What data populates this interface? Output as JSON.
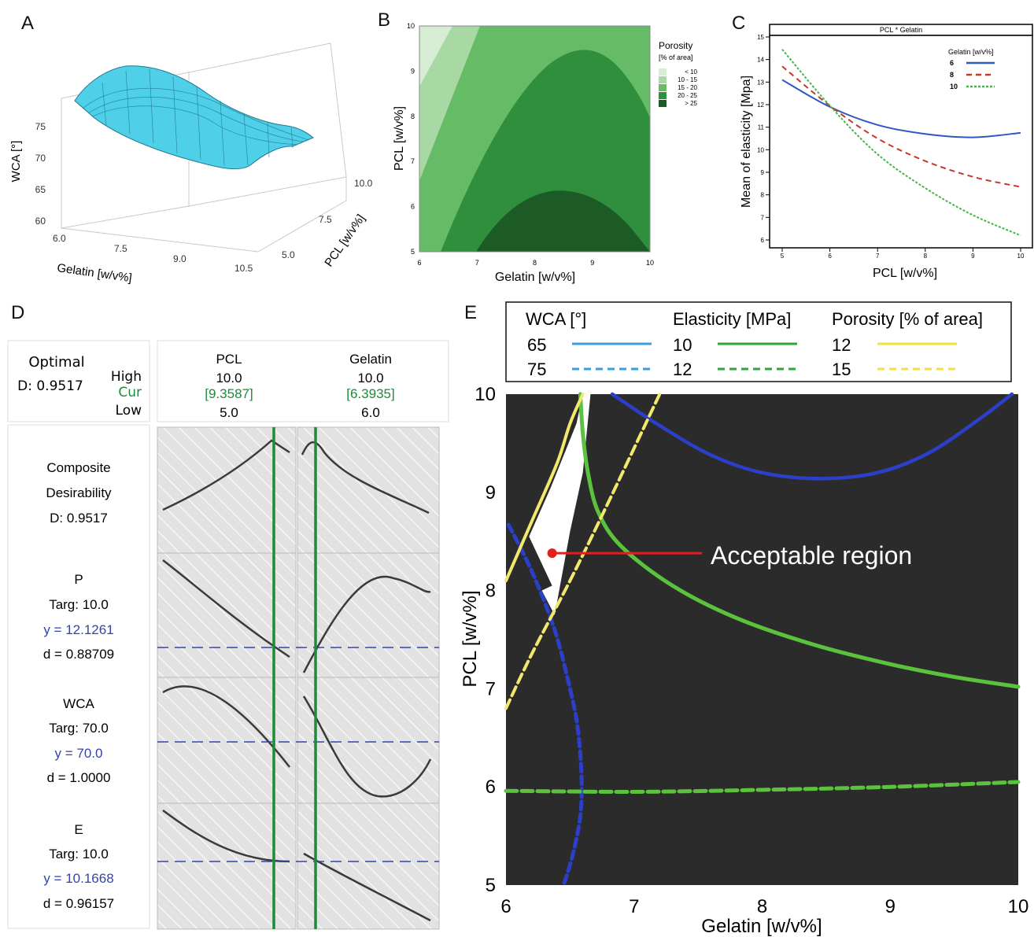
{
  "panels": {
    "a": "A",
    "b": "B",
    "c": "C",
    "d": "D",
    "e": "E"
  },
  "colors": {
    "surface": "#4fd0e8",
    "green_dark": "#2f7d32",
    "blue_line": "#2c57c5",
    "red_line": "#c0392b",
    "green_line": "#43b64a",
    "optimizer_green": "#1f8a3a",
    "optimizer_blue": "#3344aa",
    "e_bg": "#2b2b2b",
    "e_blue": "#2c3fc8",
    "e_green": "#5bc23d",
    "e_yellow": "#f2e86d",
    "e_red": "#e02020"
  },
  "panel_a": {
    "xlabel": "Gelatin [w/v%]",
    "ylabel": "PCL [w/v%]",
    "zlabel": "WCA [°]",
    "x_ticks": [
      "6.0",
      "7.5",
      "9.0",
      "10.5"
    ],
    "y_ticks": [
      "5.0",
      "7.5",
      "10.0"
    ],
    "z_ticks": [
      "60",
      "65",
      "70",
      "75"
    ]
  },
  "chart_data": [
    {
      "type": "heatmap",
      "title": "",
      "xlabel": "Gelatin [w/v%]",
      "ylabel": "PCL [w/v%]",
      "xlim": [
        6,
        10
      ],
      "ylim": [
        5,
        10
      ],
      "x_ticks": [
        "6",
        "7",
        "8",
        "9",
        "10"
      ],
      "y_ticks": [
        "5",
        "6",
        "7",
        "8",
        "9",
        "10"
      ],
      "legend_title": "Porosity",
      "legend_subtitle": "[% of area]",
      "legend": [
        "< 10",
        "10 - 15",
        "15 - 20",
        "20 - 25",
        "> 25"
      ],
      "legend_colors": [
        "#d6edd3",
        "#a8d8a3",
        "#66bb66",
        "#2f8f3c",
        "#1c5a26"
      ]
    },
    {
      "type": "line",
      "title": "PCL * Gelatin",
      "xlabel": "PCL [w/v%]",
      "ylabel": "Mean of elasticity [Mpa]",
      "xlim": [
        5,
        10
      ],
      "ylim": [
        6,
        15
      ],
      "x_ticks": [
        "5",
        "6",
        "7",
        "8",
        "9",
        "10"
      ],
      "y_ticks": [
        "6",
        "7",
        "8",
        "9",
        "10",
        "11",
        "12",
        "13",
        "14",
        "15"
      ],
      "legend_title": "Gelatin [w/v%]",
      "legend_placement": "top-right",
      "x": [
        5,
        6,
        7,
        8,
        9,
        10
      ],
      "series": [
        {
          "name": "6",
          "values": [
            13.1,
            11.9,
            11.1,
            10.7,
            10.55,
            10.75
          ]
        },
        {
          "name": "8",
          "values": [
            13.7,
            11.95,
            10.5,
            9.5,
            8.8,
            8.35
          ]
        },
        {
          "name": "10",
          "values": [
            14.45,
            11.95,
            9.8,
            8.3,
            7.1,
            6.2
          ]
        }
      ]
    },
    {
      "type": "line",
      "title": "",
      "xlabel": "Gelatin [w/v%]",
      "ylabel": "PCL [w/v%]",
      "xlim": [
        6,
        10
      ],
      "ylim": [
        5,
        10
      ],
      "x_ticks": [
        "6",
        "7",
        "8",
        "9",
        "10"
      ],
      "y_ticks": [
        "5",
        "6",
        "7",
        "8",
        "9",
        "10"
      ],
      "legend_headers": [
        "WCA [°]",
        "Elasticity [MPa]",
        "Porosity [% of area]"
      ],
      "legend_rows": [
        [
          "65",
          "10",
          "12"
        ],
        [
          "75",
          "12",
          "15"
        ]
      ],
      "annotation": "Acceptable region",
      "annotation_point": {
        "x": 6.36,
        "y": 8.38
      },
      "series": [
        {
          "name": "65",
          "x": [
            6.83,
            7.2,
            7.6,
            8.0,
            8.45,
            8.9,
            9.3,
            9.7,
            9.95
          ],
          "y": [
            10.0,
            9.68,
            9.38,
            9.2,
            9.14,
            9.2,
            9.4,
            9.75,
            10.0
          ]
        },
        {
          "name": "75",
          "x": [
            6.02,
            6.2,
            6.38,
            6.5,
            6.56,
            6.59,
            6.58,
            6.52,
            6.45
          ],
          "y": [
            8.67,
            8.2,
            7.6,
            7.0,
            6.6,
            6.1,
            5.7,
            5.3,
            5.0
          ]
        },
        {
          "name": "10",
          "x": [
            6.58,
            6.6,
            6.64,
            6.72,
            6.9,
            7.3,
            7.8,
            8.4,
            9.0,
            9.5,
            10.0
          ],
          "y": [
            10.0,
            9.6,
            9.2,
            8.8,
            8.45,
            8.05,
            7.72,
            7.45,
            7.25,
            7.12,
            7.02
          ]
        },
        {
          "name": "12",
          "x": [
            6.0,
            7.0,
            8.0,
            9.0,
            10.0
          ],
          "y": [
            5.96,
            5.95,
            5.97,
            6.0,
            6.05
          ]
        },
        {
          "name": "12",
          "x": [
            6.0,
            6.2,
            6.4,
            6.5,
            6.6
          ],
          "y": [
            8.1,
            8.7,
            9.3,
            9.7,
            10.0
          ]
        },
        {
          "name": "15",
          "x": [
            6.0,
            6.2,
            6.5,
            6.8,
            7.2
          ],
          "y": [
            6.8,
            7.35,
            8.1,
            8.9,
            10.0
          ]
        }
      ]
    }
  ],
  "panel_d": {
    "optimal_label": "Optimal",
    "optimal_d": "D: 0.9517",
    "high": "High",
    "cur": "Cur",
    "low": "Low",
    "factors": [
      {
        "name": "PCL",
        "high": "10.0",
        "cur": "[9.3587]",
        "low": "5.0"
      },
      {
        "name": "Gelatin",
        "high": "10.0",
        "cur": "[6.3935]",
        "low": "6.0"
      }
    ],
    "rows": [
      {
        "title": "Composite",
        "title2": "Desirability",
        "d": "D: 0.9517"
      },
      {
        "title": "P",
        "targ": "Targ: 10.0",
        "y": "y = 12.1261",
        "d": "d = 0.88709"
      },
      {
        "title": "WCA",
        "targ": "Targ: 70.0",
        "y": "y = 70.0",
        "d": "d = 1.0000"
      },
      {
        "title": "E",
        "targ": "Targ: 10.0",
        "y": "y = 10.1668",
        "d": "d = 0.96157"
      }
    ]
  }
}
